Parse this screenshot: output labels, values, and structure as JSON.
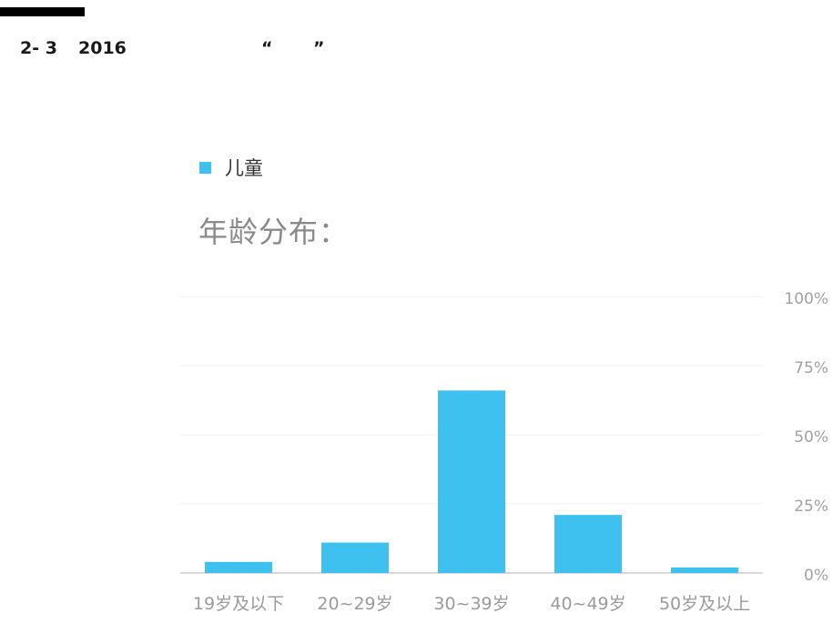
{
  "header": {
    "figure_number": "2- 3",
    "year": "2016",
    "open_quote": "“",
    "close_quote": "”"
  },
  "chart_data": {
    "type": "bar",
    "title": "年龄分布：",
    "legend_position": "top-left",
    "grid": true,
    "categories": [
      "19岁及以下",
      "20~29岁",
      "30~39岁",
      "40~49岁",
      "50岁及以上"
    ],
    "series": [
      {
        "name": "儿童",
        "values": [
          4,
          11,
          66,
          21,
          2
        ],
        "color": "#3fc1ef"
      }
    ],
    "y_ticks": [
      "100%",
      "75%",
      "50%",
      "25%",
      "0%"
    ],
    "ylim": [
      0,
      100
    ],
    "y_axis_side": "right",
    "colors": {
      "grid": "#f0f0f0",
      "baseline": "#d9d9d9",
      "tick_text": "#a0a0a0",
      "category_text": "#9a9a9a"
    }
  }
}
